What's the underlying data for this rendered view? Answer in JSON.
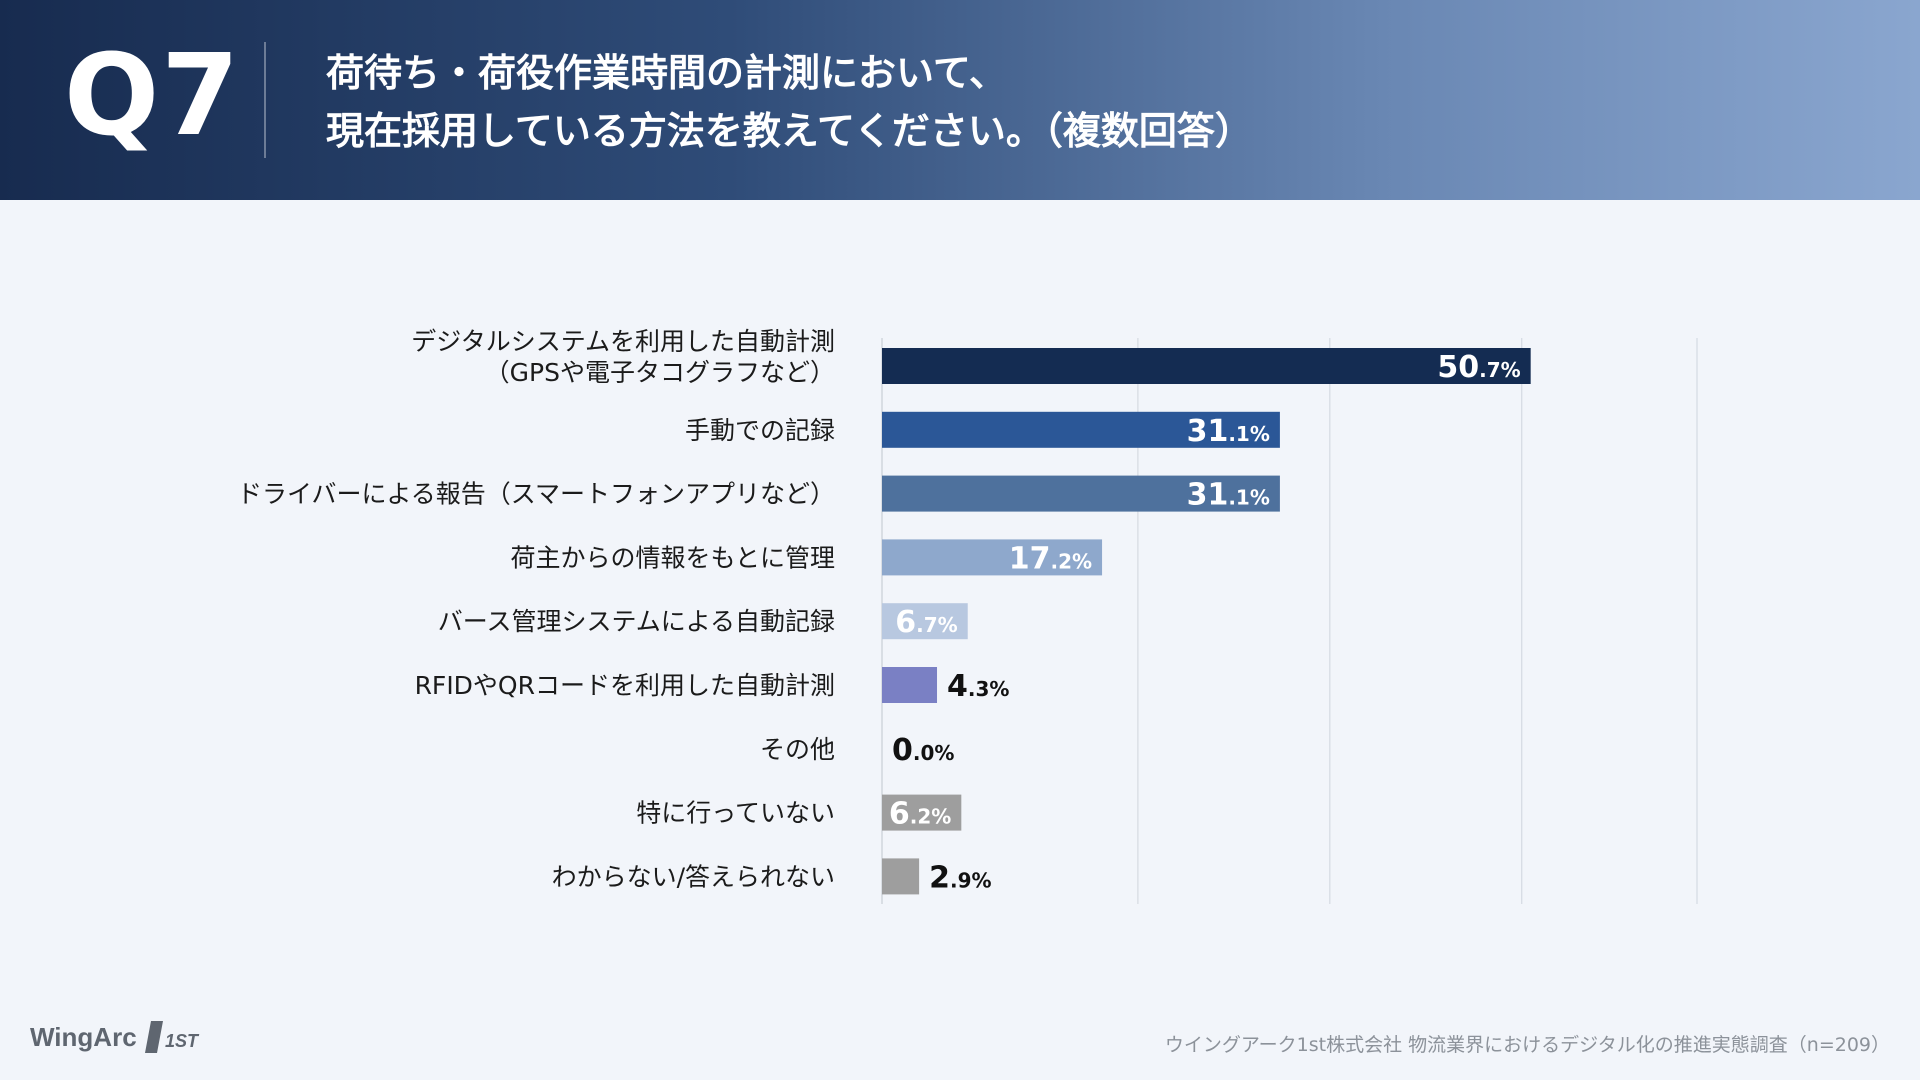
{
  "header": {
    "q_label": "Q7",
    "title_line1": "荷待ち・荷役作業時間の計測において、",
    "title_line2": "現在採用している方法を教えてください。（複数回答）"
  },
  "chart_data": {
    "type": "bar",
    "orientation": "horizontal",
    "categories": [
      [
        "デジタルシステムを利用した自動計測",
        "（GPSや電子タコグラフなど）"
      ],
      [
        "手動での記録"
      ],
      [
        "ドライバーによる報告（スマートフォンアプリなど）"
      ],
      [
        "荷主からの情報をもとに管理"
      ],
      [
        "バース管理システムによる自動記録"
      ],
      [
        "RFIDやQRコードを利用した自動計測"
      ],
      [
        "その他"
      ],
      [
        "特に行っていない"
      ],
      [
        "わからない/答えられない"
      ]
    ],
    "values": [
      50.7,
      31.1,
      31.1,
      17.2,
      6.7,
      4.3,
      0.0,
      6.2,
      2.9
    ],
    "value_labels": [
      {
        "int": "50",
        "dec": ".7%"
      },
      {
        "int": "31",
        "dec": ".1%"
      },
      {
        "int": "31",
        "dec": ".1%"
      },
      {
        "int": "17",
        "dec": ".2%"
      },
      {
        "int": "6",
        "dec": ".7%"
      },
      {
        "int": "4",
        "dec": ".3%"
      },
      {
        "int": "0",
        "dec": ".0%"
      },
      {
        "int": "6",
        "dec": ".2%"
      },
      {
        "int": "2",
        "dec": ".9%"
      }
    ],
    "colors": [
      "#142c52",
      "#2b5797",
      "#4e719d",
      "#8ea8cc",
      "#b8c8e0",
      "#7a80c4",
      "#9aa0a6",
      "#9e9e9e",
      "#9e9e9e"
    ],
    "label_inside": [
      true,
      true,
      true,
      true,
      true,
      false,
      false,
      true,
      false
    ],
    "xlim": [
      0,
      63.7
    ],
    "gridlines": [
      20,
      35,
      50,
      63.7
    ],
    "grid": true,
    "legend": "none"
  },
  "footer": {
    "logo_text": "WingArc",
    "logo_mark_text": "1ST",
    "source": "ウイングアーク1st株式会社 物流業界におけるデジタル化の推進実態調査（n=209）"
  }
}
